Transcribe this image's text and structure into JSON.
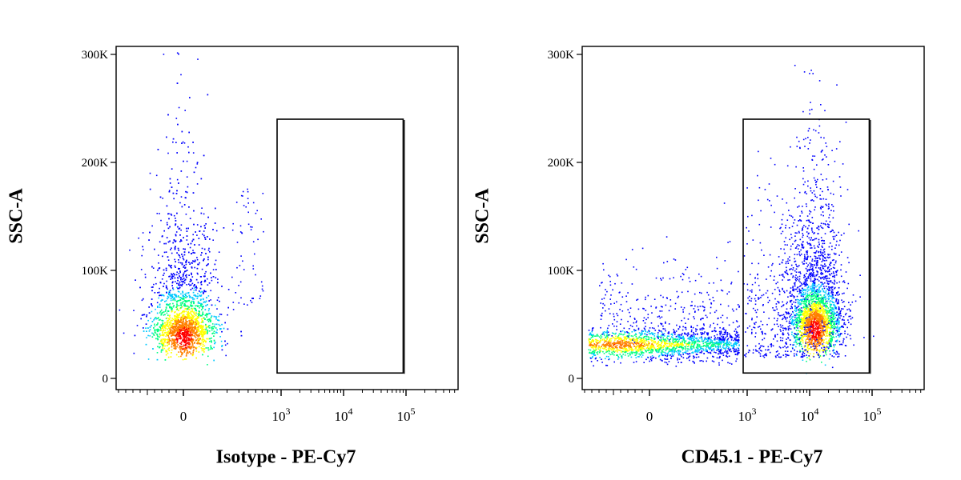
{
  "chart_data": [
    {
      "type": "scatter",
      "subtype": "flow-cytometry-density-dot-plot",
      "xlabel": "Isotype - PE-Cy7",
      "ylabel": "SSC-A",
      "x_scale": "biexponential",
      "y_scale": "linear",
      "xlim": [
        -1000,
        100000
      ],
      "ylim": [
        0,
        300000
      ],
      "x_ticks": [
        {
          "value": 0,
          "label": "0"
        },
        {
          "value": 1000,
          "label": "10",
          "exp": "3"
        },
        {
          "value": 10000,
          "label": "10",
          "exp": "4"
        },
        {
          "value": 100000,
          "label": "10",
          "exp": "5"
        }
      ],
      "y_ticks": [
        {
          "value": 0,
          "label": "0"
        },
        {
          "value": 100000,
          "label": "100K"
        },
        {
          "value": 200000,
          "label": "200K"
        },
        {
          "value": 300000,
          "label": "300K"
        }
      ],
      "gate": {
        "shape": "rectangle",
        "x_range": [
          900,
          90000
        ],
        "y_range": [
          5000,
          240000
        ],
        "events": 0
      },
      "populations": [
        {
          "description": "main population near zero fluorescence",
          "x_center": 0,
          "y_center": 38000,
          "y_range": [
            15000,
            250000
          ],
          "density": "high"
        }
      ],
      "color_scale": [
        "#0000ff",
        "#00c8ff",
        "#00ff80",
        "#ffff00",
        "#ff8000",
        "#ff0000"
      ]
    },
    {
      "type": "scatter",
      "subtype": "flow-cytometry-density-dot-plot",
      "xlabel": "CD45.1 - PE-Cy7",
      "ylabel": "SSC-A",
      "x_scale": "biexponential",
      "y_scale": "linear",
      "xlim": [
        -1000,
        100000
      ],
      "ylim": [
        0,
        300000
      ],
      "x_ticks": [
        {
          "value": 0,
          "label": "0"
        },
        {
          "value": 1000,
          "label": "10",
          "exp": "3"
        },
        {
          "value": 10000,
          "label": "10",
          "exp": "4"
        },
        {
          "value": 100000,
          "label": "10",
          "exp": "5"
        }
      ],
      "y_ticks": [
        {
          "value": 0,
          "label": "0"
        },
        {
          "value": 100000,
          "label": "100K"
        },
        {
          "value": 200000,
          "label": "200K"
        },
        {
          "value": 300000,
          "label": "300K"
        }
      ],
      "gate": {
        "shape": "rectangle",
        "x_range": [
          900,
          90000
        ],
        "y_range": [
          5000,
          240000
        ]
      },
      "populations": [
        {
          "description": "CD45.1 negative population",
          "x_range": [
            -800,
            700
          ],
          "y_center": 32000,
          "y_range": [
            18000,
            80000
          ],
          "density": "high"
        },
        {
          "description": "CD45.1 positive population",
          "x_center": 12000,
          "y_center": 45000,
          "y_range": [
            20000,
            245000
          ],
          "density": "high"
        }
      ],
      "color_scale": [
        "#0000ff",
        "#00c8ff",
        "#00ff80",
        "#ffff00",
        "#ff8000",
        "#ff0000"
      ]
    }
  ]
}
